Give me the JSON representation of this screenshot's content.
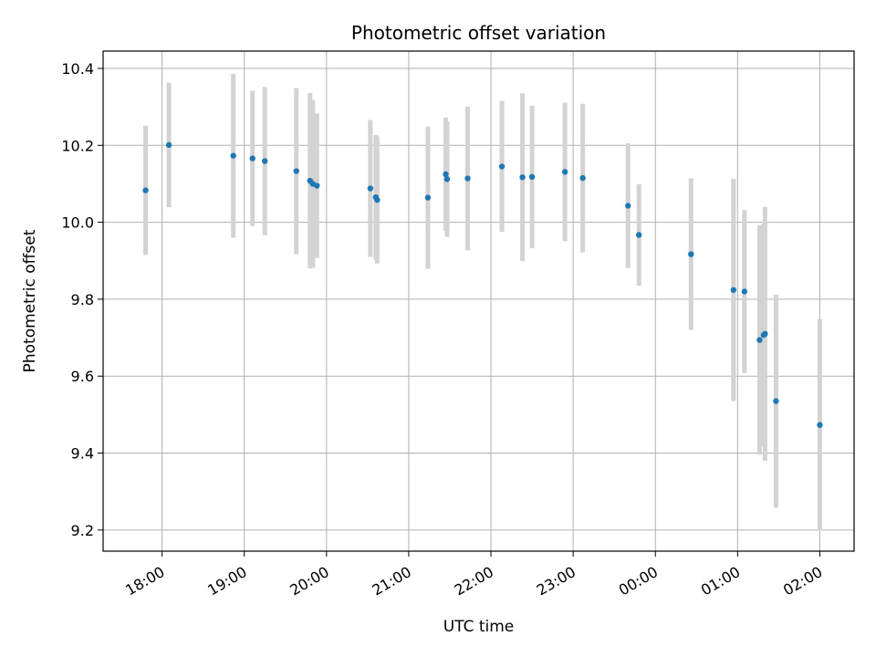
{
  "chart_data": {
    "type": "scatter",
    "title": "Photometric offset variation",
    "xlabel": "UTC time",
    "ylabel": "Photometric offset",
    "x_ticks": [
      "18:00",
      "19:00",
      "20:00",
      "21:00",
      "22:00",
      "23:00",
      "00:00",
      "01:00",
      "02:00"
    ],
    "y_ticks": [
      "9.2",
      "9.4",
      "9.6",
      "9.8",
      "10.0",
      "10.2",
      "10.4"
    ],
    "y_tick_values": [
      9.2,
      9.4,
      9.6,
      9.8,
      10.0,
      10.2,
      10.4
    ],
    "ylim": [
      9.145,
      10.445
    ],
    "xlim": [
      "17:17",
      "02:25"
    ],
    "grid": true,
    "point_color": "#1f77b4",
    "errorbar_color": "#d3d3d3",
    "series": [
      {
        "x": [
          "17:48",
          "18:05",
          "18:52",
          "19:06",
          "19:15",
          "19:38",
          "19:48",
          "19:50",
          "19:53",
          "20:32",
          "20:36",
          "20:37",
          "21:14",
          "21:27",
          "21:28",
          "21:43",
          "22:08",
          "22:23",
          "22:30",
          "22:54",
          "23:07",
          "23:40",
          "23:48",
          "00:26",
          "00:57",
          "01:05",
          "01:16",
          "01:19",
          "01:20",
          "01:28",
          "02:00"
        ],
        "y": [
          10.083,
          10.201,
          10.173,
          10.166,
          10.159,
          10.133,
          10.108,
          10.1,
          10.095,
          10.088,
          10.065,
          10.058,
          10.064,
          10.125,
          10.112,
          10.114,
          10.145,
          10.117,
          10.118,
          10.131,
          10.115,
          10.043,
          9.967,
          9.917,
          9.824,
          9.82,
          9.694,
          9.707,
          9.71,
          9.535,
          9.473
        ],
        "yerr": [
          0.168,
          0.162,
          0.213,
          0.176,
          0.193,
          0.216,
          0.228,
          0.218,
          0.188,
          0.178,
          0.162,
          0.165,
          0.185,
          0.147,
          0.15,
          0.187,
          0.17,
          0.218,
          0.185,
          0.18,
          0.193,
          0.162,
          0.132,
          0.197,
          0.289,
          0.212,
          0.298,
          0.29,
          0.33,
          0.277,
          0.275
        ]
      }
    ]
  }
}
